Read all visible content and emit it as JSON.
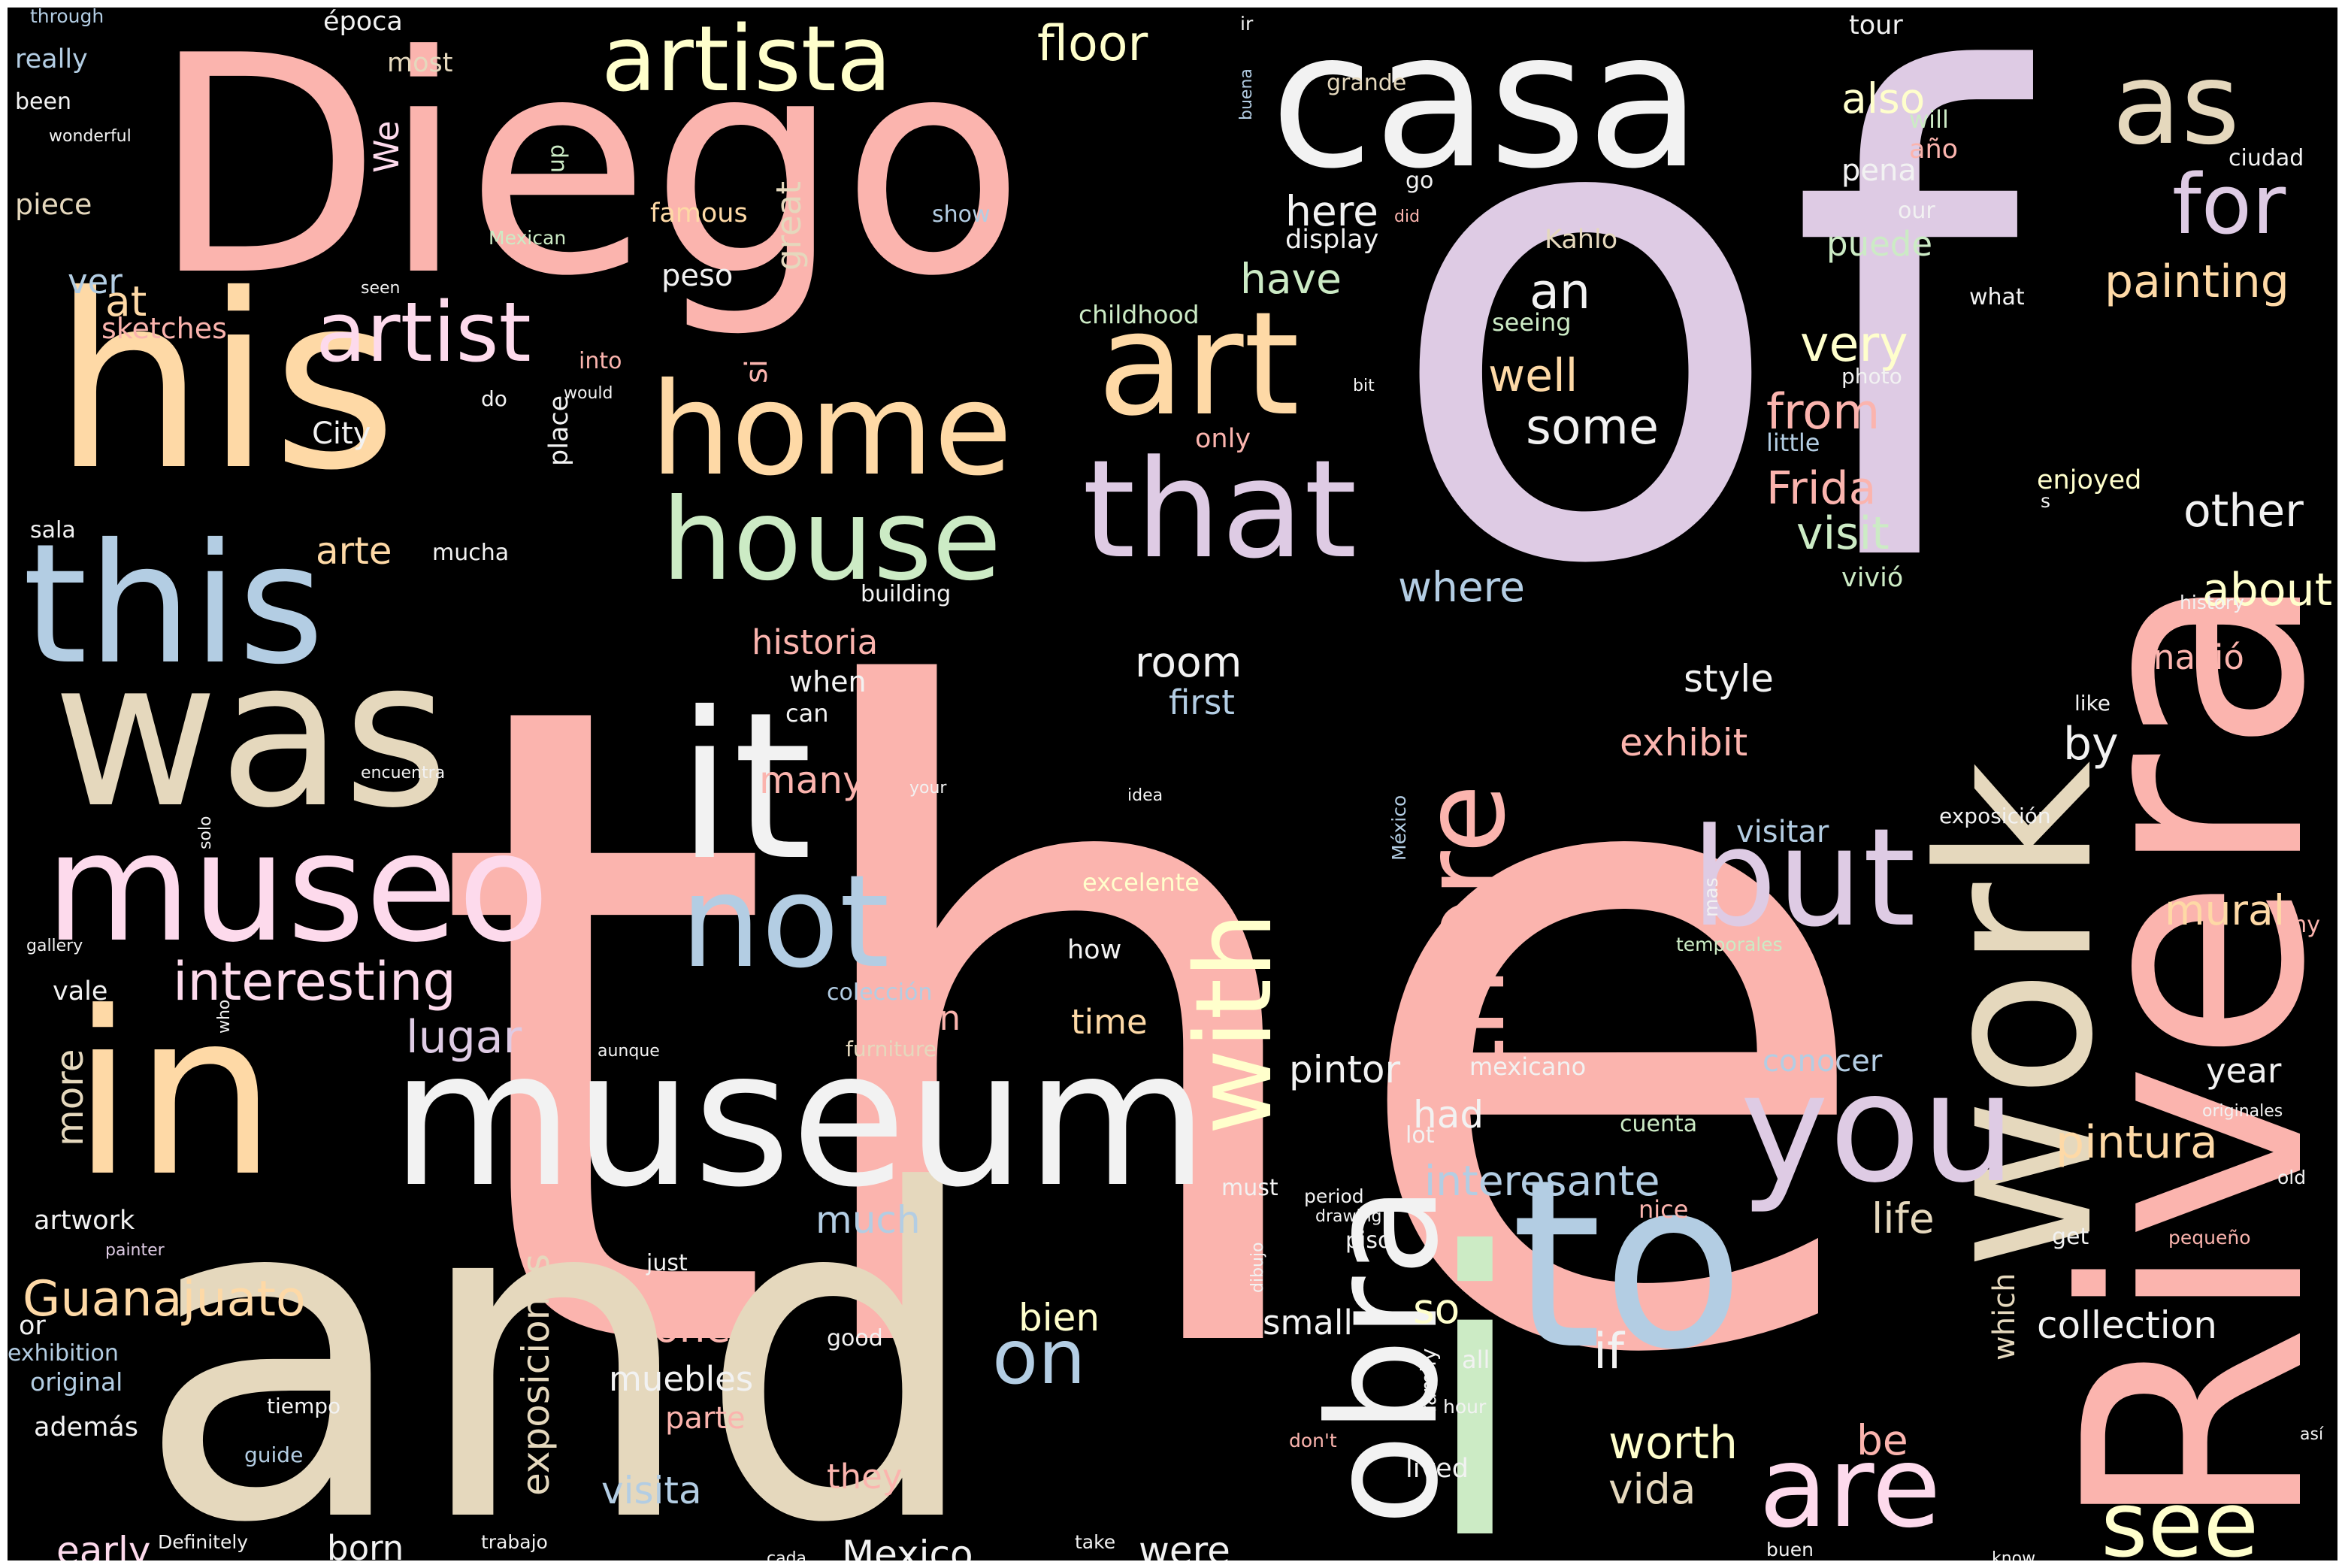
{
  "palette": {
    "pink": "#FBB4AE",
    "blue": "#B3CDE3",
    "green": "#CCEBC5",
    "lavender": "#DECBE4",
    "orange": "#FED9A6",
    "yellow": "#FFFFCC",
    "tan": "#E5D8BD",
    "rose": "#FDDAEC",
    "white": "#F2F2F2",
    "background": "#000000"
  },
  "words": [
    {
      "id": "the",
      "text": "the",
      "color": "pink"
    },
    {
      "id": "of",
      "text": "of",
      "color": "lavender"
    },
    {
      "id": "and",
      "text": "and",
      "color": "tan"
    },
    {
      "id": "Diego",
      "text": "Diego",
      "color": "pink"
    },
    {
      "id": "Rivera",
      "text": "Rivera",
      "color": "pink"
    },
    {
      "id": "i",
      "text": "i",
      "color": "green"
    },
    {
      "id": "his",
      "text": "his",
      "color": "orange"
    },
    {
      "id": "casa",
      "text": "casa",
      "color": "white"
    },
    {
      "id": "in",
      "text": "in",
      "color": "orange"
    },
    {
      "id": "museum",
      "text": "museum",
      "color": "white"
    },
    {
      "id": "was",
      "text": "was",
      "color": "tan"
    },
    {
      "id": "it",
      "text": "it",
      "color": "white"
    },
    {
      "id": "to",
      "text": "to",
      "color": "blue"
    },
    {
      "id": "work",
      "text": "work",
      "color": "tan"
    },
    {
      "id": "this",
      "text": "this",
      "color": "blue"
    },
    {
      "id": "museo",
      "text": "museo",
      "color": "rose"
    },
    {
      "id": "obra",
      "text": "obra",
      "color": "white"
    },
    {
      "id": "you",
      "text": "you",
      "color": "lavender"
    },
    {
      "id": "but",
      "text": "but",
      "color": "lavender"
    },
    {
      "id": "that",
      "text": "that",
      "color": "lavender"
    },
    {
      "id": "home",
      "text": "home",
      "color": "orange"
    },
    {
      "id": "art",
      "text": "art",
      "color": "orange"
    },
    {
      "id": "not",
      "text": "not",
      "color": "blue"
    },
    {
      "id": "house",
      "text": "house",
      "color": "green"
    },
    {
      "id": "there",
      "text": "there",
      "color": "pink"
    },
    {
      "id": "with",
      "text": "with",
      "color": "yellow"
    },
    {
      "id": "are",
      "text": "are",
      "color": "rose"
    },
    {
      "id": "artista",
      "text": "artista",
      "color": "yellow"
    },
    {
      "id": "artist",
      "text": "artist",
      "color": "rose"
    },
    {
      "id": "as",
      "text": "as",
      "color": "tan"
    },
    {
      "id": "for",
      "text": "for",
      "color": "lavender"
    },
    {
      "id": "see",
      "text": "see",
      "color": "yellow"
    },
    {
      "id": "on",
      "text": "on",
      "color": "blue"
    },
    {
      "id": "interesting",
      "text": "interesting",
      "color": "rose"
    },
    {
      "id": "Guanajuato",
      "text": "Guanajuato",
      "color": "orange"
    },
    {
      "id": "floor",
      "text": "floor",
      "color": "yellow"
    },
    {
      "id": "Frida",
      "text": "Frida",
      "color": "pink"
    },
    {
      "id": "painting",
      "text": "painting",
      "color": "orange"
    },
    {
      "id": "visit",
      "text": "visit",
      "color": "green"
    },
    {
      "id": "very",
      "text": "very",
      "color": "yellow"
    },
    {
      "id": "from",
      "text": "from",
      "color": "pink"
    },
    {
      "id": "well",
      "text": "well",
      "color": "orange"
    },
    {
      "id": "some",
      "text": "some",
      "color": "white"
    },
    {
      "id": "an",
      "text": "an",
      "color": "white"
    },
    {
      "id": "other",
      "text": "other",
      "color": "white"
    },
    {
      "id": "about",
      "text": "about",
      "color": "yellow"
    },
    {
      "id": "where",
      "text": "where",
      "color": "blue"
    },
    {
      "id": "interesante",
      "text": "interesante",
      "color": "blue"
    },
    {
      "id": "pintura",
      "text": "pintura",
      "color": "orange"
    },
    {
      "id": "mural",
      "text": "mural",
      "color": "orange"
    },
    {
      "id": "lugar",
      "text": "lugar",
      "color": "lavender"
    },
    {
      "id": "exposiciones",
      "text": "exposiciones",
      "color": "tan"
    },
    {
      "id": "worth",
      "text": "worth",
      "color": "yellow"
    },
    {
      "id": "vida",
      "text": "vida",
      "color": "tan"
    },
    {
      "id": "life",
      "text": "life",
      "color": "tan"
    },
    {
      "id": "collection",
      "text": "collection",
      "color": "white"
    },
    {
      "id": "also",
      "text": "also",
      "color": "yellow"
    },
    {
      "id": "have",
      "text": "have",
      "color": "green"
    },
    {
      "id": "here",
      "text": "here",
      "color": "white"
    },
    {
      "id": "room",
      "text": "room",
      "color": "white"
    },
    {
      "id": "style",
      "text": "style",
      "color": "white"
    },
    {
      "id": "exhibit",
      "text": "exhibit",
      "color": "pink"
    },
    {
      "id": "by",
      "text": "by",
      "color": "white"
    },
    {
      "id": "first",
      "text": "first",
      "color": "blue"
    },
    {
      "id": "pintor",
      "text": "pintor",
      "color": "white"
    },
    {
      "id": "had",
      "text": "had",
      "color": "white"
    },
    {
      "id": "so",
      "text": "so",
      "color": "yellow"
    },
    {
      "id": "small",
      "text": "small",
      "color": "white"
    },
    {
      "id": "if",
      "text": "if",
      "color": "white"
    },
    {
      "id": "bien",
      "text": "bien",
      "color": "yellow"
    },
    {
      "id": "one",
      "text": "one",
      "color": "pink"
    },
    {
      "id": "much",
      "text": "much",
      "color": "blue"
    },
    {
      "id": "many",
      "text": "many",
      "color": "pink"
    },
    {
      "id": "arte",
      "text": "arte",
      "color": "orange"
    },
    {
      "id": "at",
      "text": "at",
      "color": "orange"
    },
    {
      "id": "ver",
      "text": "ver",
      "color": "blue"
    },
    {
      "id": "more",
      "text": "more",
      "color": "tan"
    },
    {
      "id": "early",
      "text": "early",
      "color": "rose"
    },
    {
      "id": "born",
      "text": "born",
      "color": "white"
    },
    {
      "id": "Mexico",
      "text": "Mexico",
      "color": "white"
    },
    {
      "id": "were",
      "text": "were",
      "color": "white"
    },
    {
      "id": "visita",
      "text": "visita",
      "color": "blue"
    },
    {
      "id": "they",
      "text": "they",
      "color": "pink"
    },
    {
      "id": "be",
      "text": "be",
      "color": "pink"
    },
    {
      "id": "muebles",
      "text": "muebles",
      "color": "white"
    },
    {
      "id": "parte",
      "text": "parte",
      "color": "pink"
    },
    {
      "id": "gran",
      "text": "gran",
      "color": "pink"
    },
    {
      "id": "time",
      "text": "time",
      "color": "orange"
    },
    {
      "id": "historia",
      "text": "historia",
      "color": "pink"
    },
    {
      "id": "conocer",
      "text": "conocer",
      "color": "blue"
    },
    {
      "id": "year",
      "text": "year",
      "color": "white"
    },
    {
      "id": "visitar",
      "text": "visitar",
      "color": "blue"
    },
    {
      "id": "which",
      "text": "which",
      "color": "tan"
    },
    {
      "id": "puede",
      "text": "puede",
      "color": "green"
    },
    {
      "id": "Kahlo",
      "text": "Kahlo",
      "color": "tan"
    },
    {
      "id": "pena",
      "text": "pena",
      "color": "white"
    },
    {
      "id": "vivió",
      "text": "vivió",
      "color": "green"
    },
    {
      "id": "nació",
      "text": "nació",
      "color": "pink"
    },
    {
      "id": "famous",
      "text": "famous",
      "color": "orange"
    },
    {
      "id": "great",
      "text": "great",
      "color": "tan"
    },
    {
      "id": "peso",
      "text": "peso",
      "color": "white"
    },
    {
      "id": "si",
      "text": "si",
      "color": "pink"
    },
    {
      "id": "We",
      "text": "We",
      "color": "rose"
    },
    {
      "id": "really",
      "text": "really",
      "color": "blue"
    },
    {
      "id": "piece",
      "text": "piece",
      "color": "tan"
    },
    {
      "id": "sketches",
      "text": "sketches",
      "color": "pink"
    },
    {
      "id": "City",
      "text": "City",
      "color": "white"
    },
    {
      "id": "vale",
      "text": "vale",
      "color": "white"
    },
    {
      "id": "artwork",
      "text": "artwork",
      "color": "white"
    },
    {
      "id": "or",
      "text": "or",
      "color": "white"
    },
    {
      "id": "exhibition",
      "text": "exhibition",
      "color": "blue"
    },
    {
      "id": "original",
      "text": "original",
      "color": "blue"
    },
    {
      "id": "además",
      "text": "además",
      "color": "white"
    },
    {
      "id": "época",
      "text": "época",
      "color": "white"
    },
    {
      "id": "most",
      "text": "most",
      "color": "tan"
    },
    {
      "id": "through",
      "text": "through",
      "color": "blue"
    },
    {
      "id": "been",
      "text": "been",
      "color": "white"
    },
    {
      "id": "wonderful",
      "text": "wonderful",
      "color": "white"
    },
    {
      "id": "Mexican",
      "text": "Mexican",
      "color": "green"
    },
    {
      "id": "up",
      "text": "up",
      "color": "green"
    },
    {
      "id": "seen",
      "text": "seen",
      "color": "white"
    },
    {
      "id": "into",
      "text": "into",
      "color": "pink"
    },
    {
      "id": "would",
      "text": "would",
      "color": "white"
    },
    {
      "id": "do",
      "text": "do",
      "color": "white"
    },
    {
      "id": "place",
      "text": "place",
      "color": "white"
    },
    {
      "id": "sala",
      "text": "sala",
      "color": "white"
    },
    {
      "id": "mucha",
      "text": "mucha",
      "color": "white"
    },
    {
      "id": "show",
      "text": "show",
      "color": "blue"
    },
    {
      "id": "childhood",
      "text": "childhood",
      "color": "green"
    },
    {
      "id": "only",
      "text": "only",
      "color": "pink"
    },
    {
      "id": "building",
      "text": "building",
      "color": "white"
    },
    {
      "id": "when",
      "text": "when",
      "color": "white"
    },
    {
      "id": "can",
      "text": "can",
      "color": "white"
    },
    {
      "id": "encuentra",
      "text": "encuentra",
      "color": "white"
    },
    {
      "id": "solo",
      "text": "solo",
      "color": "white"
    },
    {
      "id": "your",
      "text": "your",
      "color": "white"
    },
    {
      "id": "idea",
      "text": "idea",
      "color": "white"
    },
    {
      "id": "México",
      "text": "México",
      "color": "blue"
    },
    {
      "id": "excelente",
      "text": "excelente",
      "color": "yellow"
    },
    {
      "id": "how",
      "text": "how",
      "color": "white"
    },
    {
      "id": "colección",
      "text": "colección",
      "color": "blue"
    },
    {
      "id": "gallery",
      "text": "gallery",
      "color": "white"
    },
    {
      "id": "who",
      "text": "who",
      "color": "white"
    },
    {
      "id": "aunque",
      "text": "aunque",
      "color": "white"
    },
    {
      "id": "furniture",
      "text": "furniture",
      "color": "tan"
    },
    {
      "id": "out",
      "text": "out",
      "color": "pink"
    },
    {
      "id": "mexicano",
      "text": "mexicano",
      "color": "white"
    },
    {
      "id": "lot",
      "text": "lot",
      "color": "white"
    },
    {
      "id": "cuenta",
      "text": "cuenta",
      "color": "green"
    },
    {
      "id": "nice",
      "text": "nice",
      "color": "pink"
    },
    {
      "id": "must",
      "text": "must",
      "color": "white"
    },
    {
      "id": "period",
      "text": "period",
      "color": "white"
    },
    {
      "id": "drawing",
      "text": "drawing",
      "color": "white"
    },
    {
      "id": "dibujo",
      "text": "dibujo",
      "color": "white"
    },
    {
      "id": "piso",
      "text": "piso",
      "color": "white"
    },
    {
      "id": "family",
      "text": "family",
      "color": "white"
    },
    {
      "id": "all",
      "text": "all",
      "color": "white"
    },
    {
      "id": "hour",
      "text": "hour",
      "color": "white"
    },
    {
      "id": "don't",
      "text": "don't",
      "color": "pink"
    },
    {
      "id": "lived",
      "text": "lived",
      "color": "white"
    },
    {
      "id": "just",
      "text": "just",
      "color": "white"
    },
    {
      "id": "good",
      "text": "good",
      "color": "white"
    },
    {
      "id": "tiempo",
      "text": "tiempo",
      "color": "white"
    },
    {
      "id": "guide",
      "text": "guide",
      "color": "blue"
    },
    {
      "id": "painter",
      "text": "painter",
      "color": "lavender"
    },
    {
      "id": "Definitely",
      "text": "Definitely",
      "color": "white"
    },
    {
      "id": "trabajo",
      "text": "trabajo",
      "color": "white"
    },
    {
      "id": "cada",
      "text": "cada",
      "color": "white"
    },
    {
      "id": "take",
      "text": "take",
      "color": "white"
    },
    {
      "id": "buen",
      "text": "buen",
      "color": "white"
    },
    {
      "id": "know",
      "text": "know",
      "color": "white"
    },
    {
      "id": "así",
      "text": "así",
      "color": "white"
    },
    {
      "id": "pequeño",
      "text": "pequeño",
      "color": "pink"
    },
    {
      "id": "get",
      "text": "get",
      "color": "white"
    },
    {
      "id": "old",
      "text": "old",
      "color": "white"
    },
    {
      "id": "originales",
      "text": "originales",
      "color": "white"
    },
    {
      "id": "my",
      "text": "my",
      "color": "pink"
    },
    {
      "id": "temporales",
      "text": "temporales",
      "color": "green"
    },
    {
      "id": "mas",
      "text": "mas",
      "color": "white"
    },
    {
      "id": "exposición",
      "text": "exposición",
      "color": "white"
    },
    {
      "id": "like",
      "text": "like",
      "color": "white"
    },
    {
      "id": "history",
      "text": "history",
      "color": "white"
    },
    {
      "id": "s",
      "text": "s",
      "color": "white"
    },
    {
      "id": "enjoyed",
      "text": "enjoyed",
      "color": "yellow"
    },
    {
      "id": "little",
      "text": "little",
      "color": "blue"
    },
    {
      "id": "photo",
      "text": "photo",
      "color": "white"
    },
    {
      "id": "bit",
      "text": "bit",
      "color": "white"
    },
    {
      "id": "what",
      "text": "what",
      "color": "white"
    },
    {
      "id": "seeing",
      "text": "seeing",
      "color": "green"
    },
    {
      "id": "our",
      "text": "our",
      "color": "white"
    },
    {
      "id": "go",
      "text": "go",
      "color": "white"
    },
    {
      "id": "did",
      "text": "did",
      "color": "pink"
    },
    {
      "id": "display",
      "text": "display",
      "color": "white"
    },
    {
      "id": "grande",
      "text": "grande",
      "color": "tan"
    },
    {
      "id": "buena",
      "text": "buena",
      "color": "blue"
    },
    {
      "id": "ir",
      "text": "ir",
      "color": "white"
    },
    {
      "id": "tour",
      "text": "tour",
      "color": "white"
    },
    {
      "id": "will",
      "text": "will",
      "color": "green"
    },
    {
      "id": "año",
      "text": "año",
      "color": "pink"
    },
    {
      "id": "ciudad",
      "text": "ciudad",
      "color": "white"
    }
  ]
}
